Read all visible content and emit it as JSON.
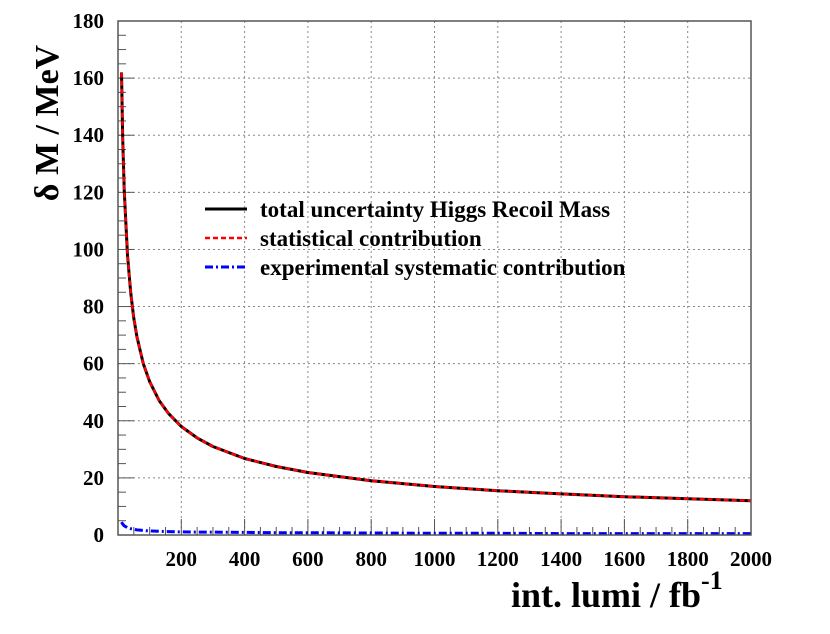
{
  "chart_data": {
    "type": "line",
    "title": "",
    "xlabel": "int. lumi / fb",
    "xlabel_superscript": "-1",
    "ylabel": "δ M / MeV",
    "xlim": [
      0,
      2000
    ],
    "ylim": [
      0,
      180
    ],
    "xticks": [
      "200",
      "400",
      "600",
      "800",
      "1000",
      "1200",
      "1400",
      "1600",
      "1800",
      "2000"
    ],
    "yticks": [
      "0",
      "20",
      "40",
      "60",
      "80",
      "100",
      "120",
      "140",
      "160",
      "180"
    ],
    "grid": true,
    "legend_position": "center",
    "x": [
      11,
      15,
      20,
      30,
      40,
      50,
      60,
      80,
      100,
      130,
      160,
      200,
      250,
      300,
      400,
      500,
      600,
      800,
      1000,
      1200,
      1400,
      1600,
      1800,
      2000
    ],
    "series": [
      {
        "name": "total uncertainty Higgs Recoil Mass",
        "color": "#000000",
        "style": "solid",
        "values": [
          162.0,
          138.8,
          120.1,
          98.0,
          84.9,
          75.9,
          69.3,
          60.0,
          53.7,
          47.1,
          42.5,
          38.0,
          34.0,
          31.0,
          26.8,
          24.0,
          21.9,
          19.0,
          17.0,
          15.5,
          14.4,
          13.4,
          12.7,
          12.0
        ]
      },
      {
        "name": "statistical contribution",
        "color": "#ff0000",
        "style": "dashed",
        "values": [
          161.9,
          138.7,
          120.1,
          98.0,
          84.9,
          75.9,
          69.3,
          60.0,
          53.7,
          47.1,
          42.5,
          38.0,
          34.0,
          31.0,
          26.8,
          24.0,
          21.9,
          19.0,
          17.0,
          15.5,
          14.4,
          13.4,
          12.7,
          12.0
        ]
      },
      {
        "name": "experimental systematic contribution",
        "color": "#0000ff",
        "style": "dash-dot",
        "values": [
          4.5,
          3.8,
          3.2,
          2.6,
          2.2,
          2.0,
          1.8,
          1.6,
          1.4,
          1.3,
          1.2,
          1.1,
          1.0,
          1.0,
          0.9,
          0.8,
          0.8,
          0.7,
          0.6,
          0.6,
          0.5,
          0.5,
          0.5,
          0.5
        ]
      }
    ]
  }
}
